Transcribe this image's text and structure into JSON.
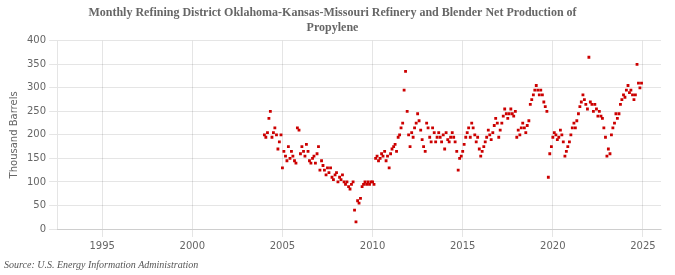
{
  "chart_data": {
    "type": "scatter",
    "title": "Monthly Refining District Oklahoma-Kansas-Missouri Refinery and Blender Net Production of\nPropylene",
    "ylabel": "Thousand Barrels",
    "source": "Source: U.S. Energy Information Administration",
    "color": "#cc0000",
    "marker": "square",
    "grid": true,
    "xlim": [
      1992.5,
      2026.0
    ],
    "ylim": [
      0,
      400
    ],
    "xticks": [
      1995,
      2000,
      2005,
      2010,
      2015,
      2020,
      2025
    ],
    "yticks": [
      0,
      50,
      100,
      150,
      200,
      250,
      300,
      350,
      400
    ],
    "x": [
      2004.0,
      2004.08,
      2004.17,
      2004.25,
      2004.33,
      2004.42,
      2004.5,
      2004.58,
      2004.67,
      2004.75,
      2004.83,
      2004.92,
      2005.0,
      2005.08,
      2005.17,
      2005.25,
      2005.33,
      2005.42,
      2005.5,
      2005.58,
      2005.67,
      2005.75,
      2005.83,
      2005.92,
      2006.0,
      2006.08,
      2006.17,
      2006.25,
      2006.33,
      2006.42,
      2006.5,
      2006.58,
      2006.67,
      2006.75,
      2006.83,
      2006.92,
      2007.0,
      2007.08,
      2007.17,
      2007.25,
      2007.33,
      2007.42,
      2007.5,
      2007.58,
      2007.67,
      2007.75,
      2007.83,
      2007.92,
      2008.0,
      2008.08,
      2008.17,
      2008.25,
      2008.33,
      2008.42,
      2008.5,
      2008.58,
      2008.67,
      2008.75,
      2008.83,
      2008.92,
      2009.0,
      2009.08,
      2009.17,
      2009.25,
      2009.33,
      2009.42,
      2009.5,
      2009.58,
      2009.67,
      2009.75,
      2009.83,
      2009.92,
      2010.0,
      2010.08,
      2010.17,
      2010.25,
      2010.33,
      2010.42,
      2010.5,
      2010.58,
      2010.67,
      2010.75,
      2010.83,
      2010.92,
      2011.0,
      2011.08,
      2011.17,
      2011.25,
      2011.33,
      2011.42,
      2011.5,
      2011.58,
      2011.67,
      2011.75,
      2011.83,
      2011.92,
      2012.0,
      2012.08,
      2012.17,
      2012.25,
      2012.33,
      2012.42,
      2012.5,
      2012.58,
      2012.67,
      2012.75,
      2012.83,
      2012.92,
      2013.0,
      2013.08,
      2013.17,
      2013.25,
      2013.33,
      2013.42,
      2013.5,
      2013.58,
      2013.67,
      2013.75,
      2013.83,
      2013.92,
      2014.0,
      2014.08,
      2014.17,
      2014.25,
      2014.33,
      2014.42,
      2014.5,
      2014.58,
      2014.67,
      2014.75,
      2014.83,
      2014.92,
      2015.0,
      2015.08,
      2015.17,
      2015.25,
      2015.33,
      2015.42,
      2015.5,
      2015.58,
      2015.67,
      2015.75,
      2015.83,
      2015.92,
      2016.0,
      2016.08,
      2016.17,
      2016.25,
      2016.33,
      2016.42,
      2016.5,
      2016.58,
      2016.67,
      2016.75,
      2016.83,
      2016.92,
      2017.0,
      2017.08,
      2017.17,
      2017.25,
      2017.33,
      2017.42,
      2017.5,
      2017.58,
      2017.67,
      2017.75,
      2017.83,
      2017.92,
      2018.0,
      2018.08,
      2018.17,
      2018.25,
      2018.33,
      2018.42,
      2018.5,
      2018.58,
      2018.67,
      2018.75,
      2018.83,
      2018.92,
      2019.0,
      2019.08,
      2019.17,
      2019.25,
      2019.33,
      2019.42,
      2019.5,
      2019.58,
      2019.67,
      2019.75,
      2019.83,
      2019.92,
      2020.0,
      2020.08,
      2020.17,
      2020.25,
      2020.33,
      2020.42,
      2020.5,
      2020.58,
      2020.67,
      2020.75,
      2020.83,
      2020.92,
      2021.0,
      2021.08,
      2021.17,
      2021.25,
      2021.33,
      2021.42,
      2021.5,
      2021.58,
      2021.67,
      2021.75,
      2021.83,
      2021.92,
      2022.0,
      2022.08,
      2022.17,
      2022.25,
      2022.33,
      2022.42,
      2022.5,
      2022.58,
      2022.67,
      2022.75,
      2022.83,
      2022.92,
      2023.0,
      2023.08,
      2023.17,
      2023.25,
      2023.33,
      2023.42,
      2023.5,
      2023.58,
      2023.67,
      2023.75,
      2023.83,
      2023.92,
      2024.0,
      2024.08,
      2024.17,
      2024.25,
      2024.33,
      2024.42,
      2024.5,
      2024.58,
      2024.67,
      2024.75,
      2024.83,
      2024.92
    ],
    "values": [
      200,
      195,
      205,
      235,
      250,
      195,
      205,
      215,
      200,
      170,
      185,
      200,
      130,
      165,
      155,
      145,
      175,
      150,
      165,
      155,
      145,
      140,
      215,
      210,
      160,
      175,
      165,
      155,
      180,
      165,
      145,
      140,
      150,
      155,
      140,
      160,
      175,
      125,
      145,
      135,
      125,
      115,
      130,
      120,
      130,
      110,
      105,
      115,
      120,
      100,
      110,
      105,
      115,
      100,
      95,
      100,
      90,
      85,
      95,
      100,
      40,
      15,
      60,
      55,
      65,
      90,
      95,
      100,
      95,
      100,
      95,
      100,
      100,
      95,
      150,
      155,
      145,
      150,
      160,
      155,
      165,
      145,
      155,
      130,
      160,
      170,
      175,
      180,
      165,
      195,
      200,
      215,
      225,
      295,
      335,
      250,
      200,
      175,
      205,
      195,
      215,
      225,
      245,
      230,
      210,
      190,
      175,
      165,
      225,
      215,
      195,
      185,
      215,
      205,
      185,
      195,
      205,
      195,
      185,
      200,
      170,
      205,
      190,
      185,
      195,
      205,
      195,
      185,
      165,
      125,
      150,
      155,
      165,
      180,
      195,
      205,
      215,
      195,
      225,
      215,
      200,
      185,
      195,
      170,
      155,
      165,
      175,
      185,
      195,
      210,
      200,
      190,
      205,
      220,
      235,
      225,
      195,
      210,
      225,
      240,
      255,
      245,
      235,
      245,
      255,
      245,
      240,
      250,
      195,
      210,
      200,
      215,
      225,
      215,
      205,
      220,
      230,
      265,
      275,
      285,
      295,
      305,
      295,
      285,
      295,
      285,
      270,
      260,
      250,
      110,
      160,
      175,
      195,
      205,
      200,
      190,
      195,
      210,
      200,
      185,
      155,
      165,
      175,
      185,
      200,
      215,
      225,
      215,
      230,
      245,
      260,
      270,
      285,
      275,
      265,
      255,
      365,
      270,
      265,
      250,
      265,
      255,
      240,
      250,
      240,
      235,
      215,
      195,
      155,
      170,
      160,
      200,
      215,
      225,
      245,
      235,
      245,
      265,
      275,
      285,
      280,
      295,
      305,
      290,
      295,
      285,
      275,
      285,
      350,
      310,
      300,
      310
    ]
  }
}
